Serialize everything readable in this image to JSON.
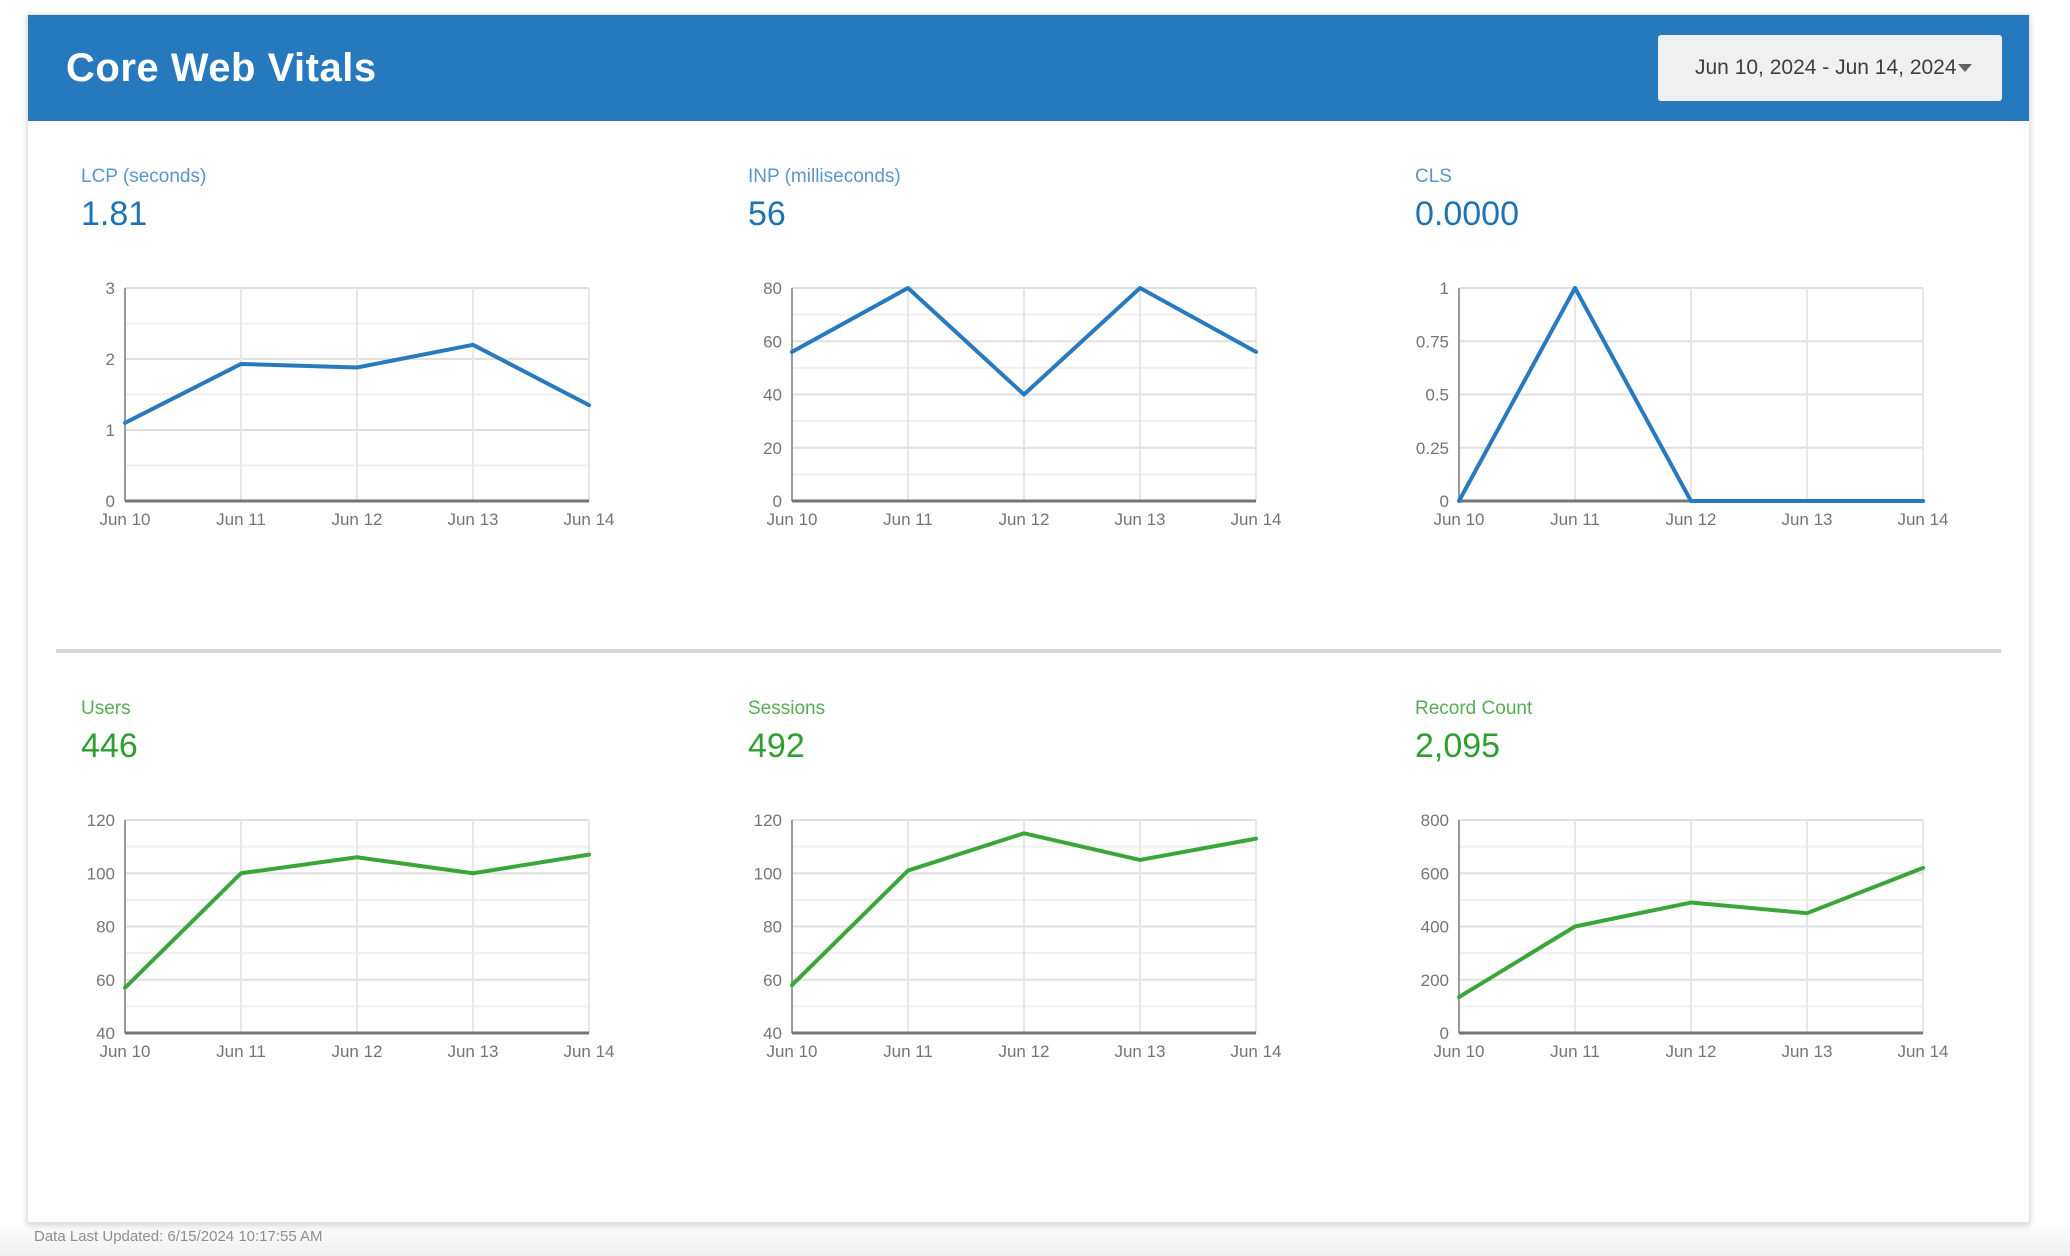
{
  "header": {
    "title": "Core Web Vitals",
    "date_range": "Jun 10, 2024 - Jun 14, 2024"
  },
  "footer": {
    "last_updated": "Data Last Updated: 6/15/2024 10:17:55 AM"
  },
  "colors": {
    "header_bg": "#2779bd",
    "blue_accent": "#2879bd",
    "green_accent": "#3aa63a",
    "divider": "#d8d8d8",
    "axis": "#757575",
    "tick_label": "#757575",
    "gridline_major": "#e0e0e0",
    "gridline_minor": "#efefef"
  },
  "chart_data": [
    {
      "type": "line",
      "title": "LCP (seconds)",
      "value": "1.81",
      "categories": [
        "Jun 10",
        "Jun 11",
        "Jun 12",
        "Jun 13",
        "Jun 14"
      ],
      "values": [
        1.1,
        1.93,
        1.88,
        2.2,
        1.35
      ],
      "ymin": 0,
      "ymax": 3,
      "yticks": [
        0,
        1,
        2,
        3
      ],
      "ytick_labels": [
        "0",
        "1",
        "2",
        "3"
      ],
      "minor_step": 0.5,
      "grid": true,
      "legend": "none",
      "line_color": "#2879bd",
      "label_color": "#5a96c8",
      "value_color": "#1e73b5"
    },
    {
      "type": "line",
      "title": "INP (milliseconds)",
      "value": "56",
      "categories": [
        "Jun 10",
        "Jun 11",
        "Jun 12",
        "Jun 13",
        "Jun 14"
      ],
      "values": [
        56,
        80,
        40,
        80,
        56
      ],
      "ymin": 0,
      "ymax": 80,
      "yticks": [
        0,
        20,
        40,
        60,
        80
      ],
      "ytick_labels": [
        "0",
        "20",
        "40",
        "60",
        "80"
      ],
      "minor_step": 10,
      "grid": true,
      "legend": "none",
      "line_color": "#2879bd",
      "label_color": "#5a96c8",
      "value_color": "#1e73b5"
    },
    {
      "type": "line",
      "title": "CLS",
      "value": "0.0000",
      "categories": [
        "Jun 10",
        "Jun 11",
        "Jun 12",
        "Jun 13",
        "Jun 14"
      ],
      "values": [
        0,
        1,
        0,
        0,
        0
      ],
      "ymin": 0,
      "ymax": 1,
      "yticks": [
        0,
        0.25,
        0.5,
        0.75,
        1
      ],
      "ytick_labels": [
        "0",
        "0.25",
        "0.5",
        "0.75",
        "1"
      ],
      "minor_step": null,
      "grid": true,
      "legend": "none",
      "line_color": "#2879bd",
      "label_color": "#5a96c8",
      "value_color": "#1e73b5"
    },
    {
      "type": "line",
      "title": "Users",
      "value": "446",
      "categories": [
        "Jun 10",
        "Jun 11",
        "Jun 12",
        "Jun 13",
        "Jun 14"
      ],
      "values": [
        57,
        100,
        106,
        100,
        107
      ],
      "ymin": 40,
      "ymax": 120,
      "yticks": [
        40,
        60,
        80,
        100,
        120
      ],
      "ytick_labels": [
        "40",
        "60",
        "80",
        "100",
        "120"
      ],
      "minor_step": 10,
      "grid": true,
      "legend": "none",
      "line_color": "#3aa63a",
      "label_color": "#56ad56",
      "value_color": "#2f9e2f"
    },
    {
      "type": "line",
      "title": "Sessions",
      "value": "492",
      "categories": [
        "Jun 10",
        "Jun 11",
        "Jun 12",
        "Jun 13",
        "Jun 14"
      ],
      "values": [
        58,
        101,
        115,
        105,
        113
      ],
      "ymin": 40,
      "ymax": 120,
      "yticks": [
        40,
        60,
        80,
        100,
        120
      ],
      "ytick_labels": [
        "40",
        "60",
        "80",
        "100",
        "120"
      ],
      "minor_step": 10,
      "grid": true,
      "legend": "none",
      "line_color": "#3aa63a",
      "label_color": "#56ad56",
      "value_color": "#2f9e2f"
    },
    {
      "type": "line",
      "title": "Record Count",
      "value": "2,095",
      "categories": [
        "Jun 10",
        "Jun 11",
        "Jun 12",
        "Jun 13",
        "Jun 14"
      ],
      "values": [
        135,
        400,
        490,
        450,
        620
      ],
      "ymin": 0,
      "ymax": 800,
      "yticks": [
        0,
        200,
        400,
        600,
        800
      ],
      "ytick_labels": [
        "0",
        "200",
        "400",
        "600",
        "800"
      ],
      "minor_step": 100,
      "grid": true,
      "legend": "none",
      "line_color": "#3aa63a",
      "label_color": "#56ad56",
      "value_color": "#2f9e2f"
    }
  ]
}
